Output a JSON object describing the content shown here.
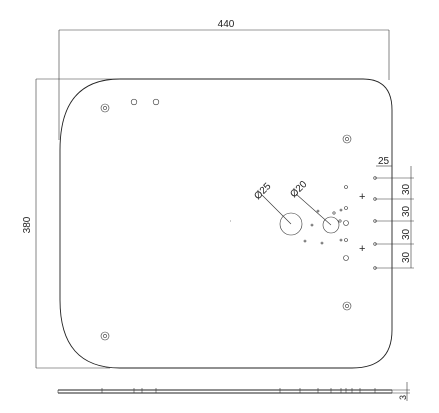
{
  "dimensions": {
    "width": "440",
    "height": "380",
    "offset": "25",
    "hole_large": "Ø25",
    "hole_small": "Ø20",
    "spacing": [
      "30",
      "30",
      "30",
      "30"
    ],
    "thickness": "3"
  },
  "colors": {
    "line": "#222222",
    "background": "#ffffff"
  }
}
